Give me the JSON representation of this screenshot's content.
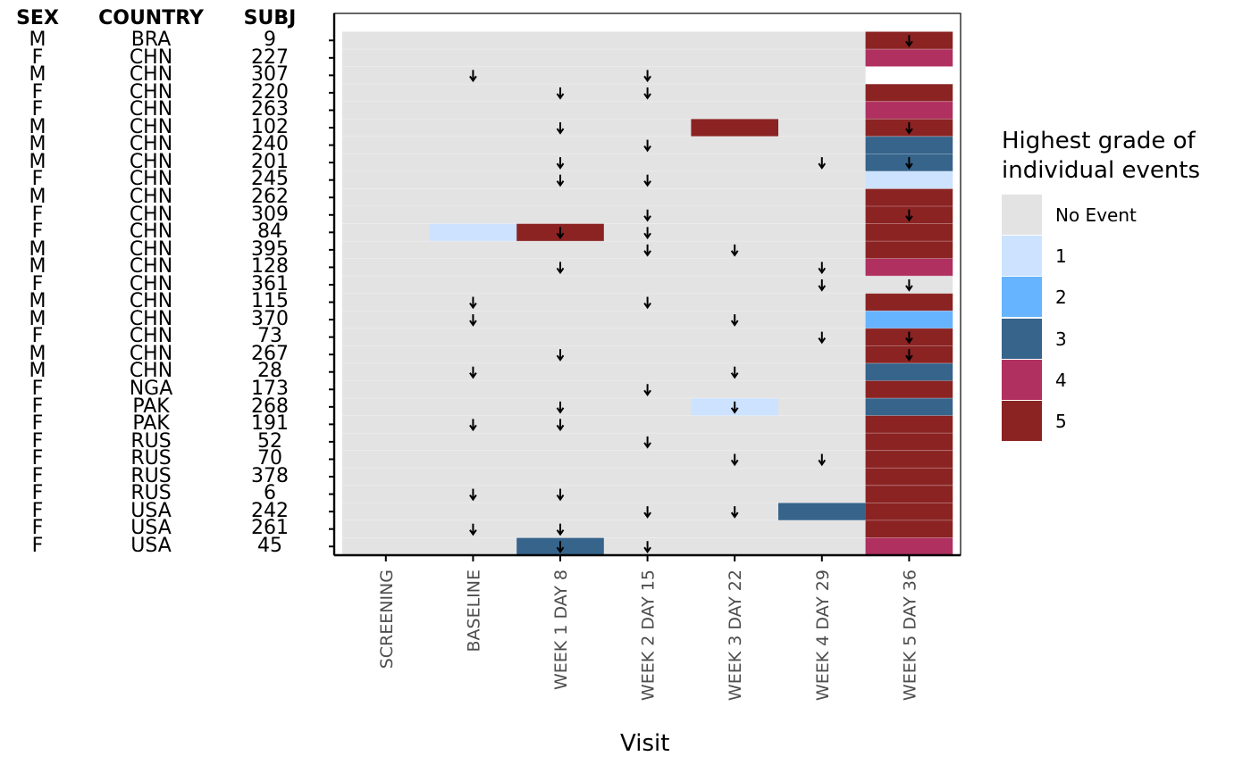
{
  "table_headers": {
    "sex": "SEX",
    "country": "COUNTRY",
    "subj": "SUBJ"
  },
  "chart_data": {
    "type": "heatmap",
    "xlabel": "Visit",
    "visits": [
      "SCREENING",
      "BASELINE",
      "WEEK 1 DAY 8",
      "WEEK 2 DAY 15",
      "WEEK 3 DAY 22",
      "WEEK 4 DAY 29",
      "WEEK 5 DAY 36"
    ],
    "legend": {
      "title_line1": "Highest grade of",
      "title_line2": "individual events",
      "placement": "right",
      "entries": [
        {
          "label": "No Event",
          "color": "#e3e3e3"
        },
        {
          "label": "1",
          "color": "#cce2ff"
        },
        {
          "label": "2",
          "color": "#66b4ff"
        },
        {
          "label": "3",
          "color": "#36648b"
        },
        {
          "label": "4",
          "color": "#b03060"
        },
        {
          "label": "5",
          "color": "#8b2323"
        }
      ]
    },
    "subjects": [
      {
        "sex": "M",
        "country": "BRA",
        "subj": "9",
        "grades": [
          0,
          0,
          0,
          0,
          0,
          0,
          5
        ],
        "arrows": [
          6
        ]
      },
      {
        "sex": "F",
        "country": "CHN",
        "subj": "227",
        "grades": [
          0,
          0,
          0,
          0,
          0,
          0,
          4
        ],
        "arrows": []
      },
      {
        "sex": "M",
        "country": "CHN",
        "subj": "307",
        "grades": [
          0,
          0,
          0,
          0,
          0,
          0,
          null
        ],
        "arrows": [
          1,
          3
        ]
      },
      {
        "sex": "F",
        "country": "CHN",
        "subj": "220",
        "grades": [
          0,
          0,
          0,
          0,
          0,
          0,
          5
        ],
        "arrows": [
          2,
          3
        ]
      },
      {
        "sex": "F",
        "country": "CHN",
        "subj": "263",
        "grades": [
          0,
          0,
          0,
          0,
          0,
          0,
          4
        ],
        "arrows": []
      },
      {
        "sex": "M",
        "country": "CHN",
        "subj": "102",
        "grades": [
          0,
          0,
          0,
          0,
          5,
          0,
          5
        ],
        "arrows": [
          2,
          6
        ]
      },
      {
        "sex": "M",
        "country": "CHN",
        "subj": "240",
        "grades": [
          0,
          0,
          0,
          0,
          0,
          0,
          3
        ],
        "arrows": [
          3
        ]
      },
      {
        "sex": "M",
        "country": "CHN",
        "subj": "201",
        "grades": [
          0,
          0,
          0,
          0,
          0,
          0,
          3
        ],
        "arrows": [
          2,
          5,
          6
        ]
      },
      {
        "sex": "F",
        "country": "CHN",
        "subj": "245",
        "grades": [
          0,
          0,
          0,
          0,
          0,
          0,
          1
        ],
        "arrows": [
          2,
          3
        ]
      },
      {
        "sex": "M",
        "country": "CHN",
        "subj": "262",
        "grades": [
          0,
          0,
          0,
          0,
          0,
          0,
          5
        ],
        "arrows": []
      },
      {
        "sex": "F",
        "country": "CHN",
        "subj": "309",
        "grades": [
          0,
          0,
          0,
          0,
          0,
          0,
          5
        ],
        "arrows": [
          3,
          6
        ]
      },
      {
        "sex": "F",
        "country": "CHN",
        "subj": "84",
        "grades": [
          0,
          1,
          5,
          0,
          0,
          0,
          5
        ],
        "arrows": [
          2,
          3
        ]
      },
      {
        "sex": "M",
        "country": "CHN",
        "subj": "395",
        "grades": [
          0,
          0,
          0,
          0,
          0,
          0,
          5
        ],
        "arrows": [
          3,
          4
        ]
      },
      {
        "sex": "M",
        "country": "CHN",
        "subj": "128",
        "grades": [
          0,
          0,
          0,
          0,
          0,
          0,
          4
        ],
        "arrows": [
          2,
          5
        ]
      },
      {
        "sex": "F",
        "country": "CHN",
        "subj": "361",
        "grades": [
          0,
          0,
          0,
          0,
          0,
          0,
          0
        ],
        "arrows": [
          5,
          6
        ]
      },
      {
        "sex": "M",
        "country": "CHN",
        "subj": "115",
        "grades": [
          0,
          0,
          0,
          0,
          0,
          0,
          5
        ],
        "arrows": [
          1,
          3
        ]
      },
      {
        "sex": "M",
        "country": "CHN",
        "subj": "370",
        "grades": [
          0,
          0,
          0,
          0,
          0,
          0,
          2
        ],
        "arrows": [
          1,
          4
        ]
      },
      {
        "sex": "F",
        "country": "CHN",
        "subj": "73",
        "grades": [
          0,
          0,
          0,
          0,
          0,
          0,
          5
        ],
        "arrows": [
          5,
          6
        ]
      },
      {
        "sex": "M",
        "country": "CHN",
        "subj": "267",
        "grades": [
          0,
          0,
          0,
          0,
          0,
          0,
          5
        ],
        "arrows": [
          2,
          6
        ]
      },
      {
        "sex": "M",
        "country": "CHN",
        "subj": "28",
        "grades": [
          0,
          0,
          0,
          0,
          0,
          0,
          3
        ],
        "arrows": [
          1,
          4
        ]
      },
      {
        "sex": "F",
        "country": "NGA",
        "subj": "173",
        "grades": [
          0,
          0,
          0,
          0,
          0,
          0,
          5
        ],
        "arrows": [
          3
        ]
      },
      {
        "sex": "F",
        "country": "PAK",
        "subj": "268",
        "grades": [
          0,
          0,
          0,
          0,
          1,
          0,
          3
        ],
        "arrows": [
          2,
          4
        ]
      },
      {
        "sex": "F",
        "country": "PAK",
        "subj": "191",
        "grades": [
          0,
          0,
          0,
          0,
          0,
          0,
          5
        ],
        "arrows": [
          1,
          2
        ]
      },
      {
        "sex": "F",
        "country": "RUS",
        "subj": "52",
        "grades": [
          0,
          0,
          0,
          0,
          0,
          0,
          5
        ],
        "arrows": [
          3
        ]
      },
      {
        "sex": "F",
        "country": "RUS",
        "subj": "70",
        "grades": [
          0,
          0,
          0,
          0,
          0,
          0,
          5
        ],
        "arrows": [
          4,
          5
        ]
      },
      {
        "sex": "F",
        "country": "RUS",
        "subj": "378",
        "grades": [
          0,
          0,
          0,
          0,
          0,
          0,
          5
        ],
        "arrows": []
      },
      {
        "sex": "F",
        "country": "RUS",
        "subj": "6",
        "grades": [
          0,
          0,
          0,
          0,
          0,
          0,
          5
        ],
        "arrows": [
          1,
          2
        ]
      },
      {
        "sex": "F",
        "country": "USA",
        "subj": "242",
        "grades": [
          0,
          0,
          0,
          0,
          0,
          3,
          5
        ],
        "arrows": [
          3,
          4
        ]
      },
      {
        "sex": "F",
        "country": "USA",
        "subj": "261",
        "grades": [
          0,
          0,
          0,
          0,
          0,
          0,
          5
        ],
        "arrows": [
          1,
          2
        ]
      },
      {
        "sex": "F",
        "country": "USA",
        "subj": "45",
        "grades": [
          0,
          0,
          3,
          0,
          0,
          0,
          4
        ],
        "arrows": [
          2,
          3
        ]
      }
    ]
  }
}
